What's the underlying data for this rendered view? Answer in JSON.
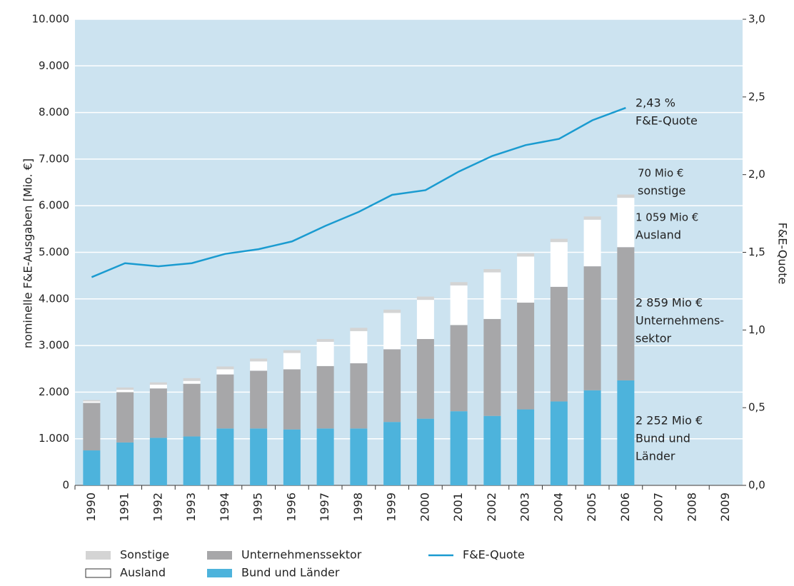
{
  "chart_data": {
    "type": "bar",
    "stacked": true,
    "categories": [
      "1990",
      "1991",
      "1992",
      "1993",
      "1994",
      "1995",
      "1996",
      "1997",
      "1998",
      "1999",
      "2000",
      "2001",
      "2002",
      "2003",
      "2004",
      "2005",
      "2006",
      "2007",
      "2008",
      "2009"
    ],
    "series": [
      {
        "name": "Bund und Länder",
        "color": "#4db3dc",
        "values": [
          750,
          920,
          1020,
          1050,
          1220,
          1220,
          1200,
          1220,
          1220,
          1360,
          1430,
          1590,
          1490,
          1630,
          1800,
          2040,
          2252,
          null,
          null,
          null
        ]
      },
      {
        "name": "Unternehmenssektor",
        "color": "#a7a7a9",
        "values": [
          1020,
          1080,
          1060,
          1130,
          1160,
          1240,
          1290,
          1340,
          1400,
          1560,
          1710,
          1850,
          2080,
          2290,
          2460,
          2660,
          2859,
          null,
          null,
          null
        ]
      },
      {
        "name": "Ausland",
        "color": "#ffffff",
        "values": [
          30,
          50,
          80,
          60,
          110,
          200,
          350,
          520,
          690,
          780,
          840,
          850,
          1000,
          990,
          960,
          1000,
          1059,
          null,
          null,
          null
        ]
      },
      {
        "name": "Sonstige",
        "color": "#d4d4d4",
        "values": [
          30,
          50,
          50,
          60,
          60,
          60,
          60,
          60,
          70,
          70,
          70,
          70,
          70,
          70,
          70,
          70,
          70,
          null,
          null,
          null
        ]
      },
      {
        "name": "F&E-Quote",
        "color": "#1a9bd0",
        "type": "line",
        "axis": "y2",
        "values": [
          1.34,
          1.43,
          1.41,
          1.43,
          1.49,
          1.52,
          1.57,
          1.67,
          1.76,
          1.87,
          1.9,
          2.02,
          2.12,
          2.19,
          2.23,
          2.35,
          2.43,
          null,
          null,
          null
        ]
      }
    ],
    "ylabel": "nominelle F&E-Ausgaben [Mio. €]",
    "y2label": "F&E-Quote",
    "ylim": [
      0,
      10000
    ],
    "yticks": [
      0,
      {
        "value": 1000,
        "label": "1.000"
      },
      {
        "value": 2000,
        "label": "2.000"
      },
      {
        "value": 3000,
        "label": "3.000"
      },
      {
        "value": 4000,
        "label": "4.000"
      },
      {
        "value": 5000,
        "label": "5.000"
      },
      {
        "value": 6000,
        "label": "6.000"
      },
      {
        "value": 7000,
        "label": "7.000"
      },
      {
        "value": 8000,
        "label": "8.000"
      },
      {
        "value": 9000,
        "label": "9.000"
      },
      {
        "value": 10000,
        "label": "10.000"
      }
    ],
    "y2lim": [
      0,
      3
    ],
    "y2ticks": [
      {
        "value": 0,
        "label": "0,0"
      },
      {
        "value": 0.5,
        "label": "0,5"
      },
      {
        "value": 1,
        "label": "1,0"
      },
      {
        "value": 1.5,
        "label": "1,5"
      },
      {
        "value": 2,
        "label": "2,0"
      },
      {
        "value": 2.5,
        "label": "2,5"
      },
      {
        "value": 3,
        "label": "3,0"
      }
    ],
    "grid": true,
    "annotations": [
      [
        "2,43 %",
        "F&E-Quote"
      ],
      [
        "70 Mio €",
        "sonstige"
      ],
      [
        "1 059 Mio €",
        "Ausland"
      ],
      [
        "2 859 Mio €",
        "Unternehmens-",
        "sektor"
      ],
      [
        "2 252 Mio €",
        "Bund und",
        "Länder"
      ]
    ]
  }
}
